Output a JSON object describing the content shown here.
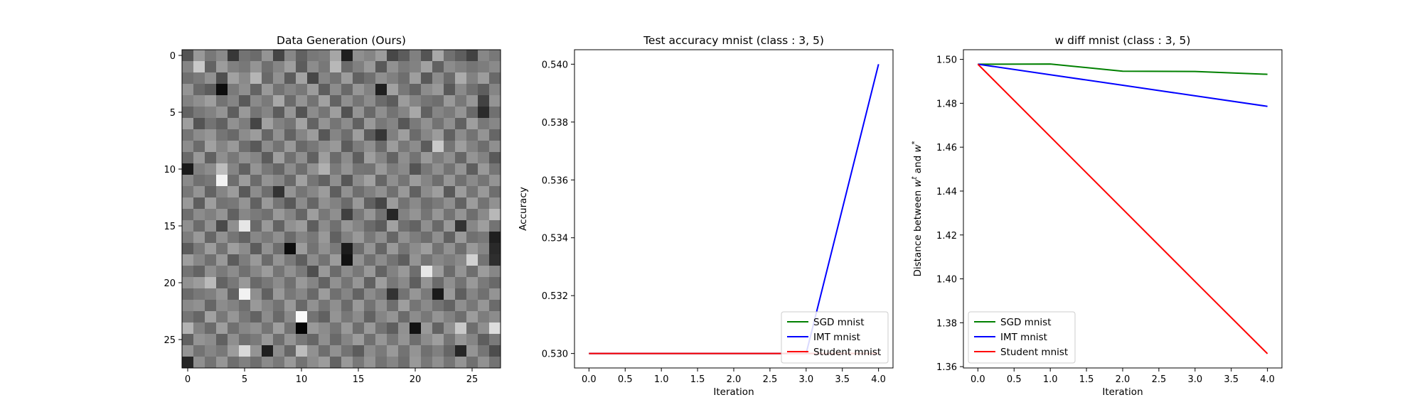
{
  "chart_data": [
    {
      "type": "heatmap",
      "title": "Data Generation (Ours)",
      "rows": 28,
      "cols": 28,
      "colormap": "gray",
      "xticks": [
        "0",
        "5",
        "10",
        "15",
        "20",
        "25"
      ],
      "yticks": [
        "0",
        "5",
        "10",
        "15",
        "20",
        "25"
      ],
      "pixels": [
        [
          0.33,
          0.6,
          0.47,
          0.54,
          0.22,
          0.45,
          0.42,
          0.58,
          0.27,
          0.53,
          0.38,
          0.47,
          0.49,
          0.65,
          0.12,
          0.56,
          0.52,
          0.61,
          0.28,
          0.36,
          0.5,
          0.33,
          0.66,
          0.44,
          0.37,
          0.26,
          0.53,
          0.47
        ],
        [
          0.52,
          0.79,
          0.39,
          0.61,
          0.5,
          0.47,
          0.58,
          0.44,
          0.52,
          0.62,
          0.36,
          0.55,
          0.47,
          0.72,
          0.42,
          0.5,
          0.6,
          0.35,
          0.57,
          0.48,
          0.51,
          0.63,
          0.38,
          0.55,
          0.5,
          0.46,
          0.49,
          0.54
        ],
        [
          0.44,
          0.48,
          0.57,
          0.31,
          0.63,
          0.54,
          0.71,
          0.41,
          0.57,
          0.36,
          0.64,
          0.28,
          0.52,
          0.45,
          0.61,
          0.38,
          0.44,
          0.56,
          0.5,
          0.43,
          0.62,
          0.35,
          0.55,
          0.42,
          0.67,
          0.51,
          0.61,
          0.41
        ],
        [
          0.58,
          0.41,
          0.36,
          0.05,
          0.48,
          0.56,
          0.39,
          0.6,
          0.45,
          0.52,
          0.47,
          0.61,
          0.37,
          0.55,
          0.41,
          0.59,
          0.51,
          0.12,
          0.63,
          0.47,
          0.39,
          0.55,
          0.6,
          0.35,
          0.54,
          0.44,
          0.37,
          0.52
        ],
        [
          0.51,
          0.56,
          0.62,
          0.45,
          0.52,
          0.35,
          0.54,
          0.48,
          0.66,
          0.42,
          0.58,
          0.45,
          0.63,
          0.39,
          0.56,
          0.46,
          0.55,
          0.42,
          0.36,
          0.61,
          0.52,
          0.46,
          0.43,
          0.6,
          0.47,
          0.59,
          0.26,
          0.58
        ],
        [
          0.39,
          0.47,
          0.51,
          0.58,
          0.37,
          0.6,
          0.46,
          0.52,
          0.36,
          0.59,
          0.33,
          0.55,
          0.46,
          0.62,
          0.32,
          0.58,
          0.41,
          0.56,
          0.45,
          0.52,
          0.66,
          0.38,
          0.52,
          0.48,
          0.58,
          0.41,
          0.17,
          0.44
        ],
        [
          0.62,
          0.33,
          0.45,
          0.38,
          0.57,
          0.49,
          0.27,
          0.63,
          0.51,
          0.46,
          0.64,
          0.39,
          0.58,
          0.46,
          0.55,
          0.38,
          0.6,
          0.47,
          0.52,
          0.34,
          0.48,
          0.57,
          0.45,
          0.56,
          0.38,
          0.62,
          0.47,
          0.53
        ],
        [
          0.46,
          0.55,
          0.59,
          0.46,
          0.41,
          0.55,
          0.61,
          0.4,
          0.57,
          0.39,
          0.52,
          0.61,
          0.34,
          0.52,
          0.43,
          0.62,
          0.36,
          0.21,
          0.5,
          0.62,
          0.42,
          0.53,
          0.61,
          0.38,
          0.55,
          0.45,
          0.58,
          0.4
        ],
        [
          0.55,
          0.42,
          0.63,
          0.52,
          0.6,
          0.43,
          0.35,
          0.55,
          0.45,
          0.6,
          0.41,
          0.47,
          0.55,
          0.6,
          0.36,
          0.49,
          0.56,
          0.42,
          0.61,
          0.47,
          0.55,
          0.36,
          0.79,
          0.46,
          0.62,
          0.51,
          0.43,
          0.56
        ],
        [
          0.41,
          0.6,
          0.38,
          0.56,
          0.47,
          0.57,
          0.52,
          0.36,
          0.62,
          0.44,
          0.56,
          0.38,
          0.62,
          0.42,
          0.55,
          0.37,
          0.62,
          0.52,
          0.39,
          0.56,
          0.45,
          0.6,
          0.49,
          0.56,
          0.4,
          0.58,
          0.51,
          0.35
        ],
        [
          0.1,
          0.5,
          0.55,
          0.74,
          0.52,
          0.38,
          0.58,
          0.47,
          0.4,
          0.55,
          0.43,
          0.57,
          0.69,
          0.48,
          0.58,
          0.46,
          0.45,
          0.6,
          0.49,
          0.54,
          0.33,
          0.47,
          0.56,
          0.45,
          0.58,
          0.37,
          0.6,
          0.46
        ],
        [
          0.54,
          0.44,
          0.47,
          0.95,
          0.43,
          0.61,
          0.42,
          0.58,
          0.53,
          0.41,
          0.63,
          0.46,
          0.38,
          0.56,
          0.34,
          0.55,
          0.63,
          0.4,
          0.56,
          0.46,
          0.61,
          0.52,
          0.43,
          0.59,
          0.44,
          0.54,
          0.46,
          0.58
        ],
        [
          0.47,
          0.58,
          0.39,
          0.52,
          0.61,
          0.35,
          0.55,
          0.43,
          0.2,
          0.58,
          0.46,
          0.53,
          0.61,
          0.37,
          0.57,
          0.43,
          0.5,
          0.57,
          0.44,
          0.6,
          0.38,
          0.55,
          0.62,
          0.35,
          0.61,
          0.46,
          0.6,
          0.43
        ],
        [
          0.6,
          0.37,
          0.62,
          0.45,
          0.47,
          0.58,
          0.38,
          0.6,
          0.46,
          0.35,
          0.55,
          0.4,
          0.57,
          0.51,
          0.42,
          0.6,
          0.38,
          0.28,
          0.61,
          0.45,
          0.54,
          0.43,
          0.48,
          0.56,
          0.39,
          0.61,
          0.45,
          0.57
        ],
        [
          0.43,
          0.55,
          0.5,
          0.58,
          0.38,
          0.53,
          0.48,
          0.44,
          0.6,
          0.52,
          0.4,
          0.62,
          0.47,
          0.56,
          0.25,
          0.47,
          0.59,
          0.45,
          0.15,
          0.51,
          0.58,
          0.46,
          0.59,
          0.45,
          0.58,
          0.43,
          0.54,
          0.72
        ],
        [
          0.56,
          0.42,
          0.57,
          0.29,
          0.56,
          0.9,
          0.41,
          0.6,
          0.39,
          0.57,
          0.61,
          0.37,
          0.55,
          0.44,
          0.59,
          0.52,
          0.42,
          0.36,
          0.63,
          0.44,
          0.39,
          0.56,
          0.41,
          0.6,
          0.2,
          0.53,
          0.62,
          0.45
        ],
        [
          0.49,
          0.6,
          0.4,
          0.57,
          0.46,
          0.39,
          0.53,
          0.48,
          0.56,
          0.42,
          0.52,
          0.47,
          0.6,
          0.38,
          0.51,
          0.6,
          0.47,
          0.56,
          0.4,
          0.57,
          0.49,
          0.43,
          0.56,
          0.38,
          0.6,
          0.44,
          0.47,
          0.12
        ],
        [
          0.36,
          0.48,
          0.61,
          0.45,
          0.62,
          0.55,
          0.36,
          0.57,
          0.43,
          0.05,
          0.61,
          0.45,
          0.57,
          0.48,
          0.11,
          0.43,
          0.58,
          0.4,
          0.6,
          0.46,
          0.55,
          0.62,
          0.45,
          0.57,
          0.43,
          0.6,
          0.52,
          0.16
        ],
        [
          0.62,
          0.53,
          0.44,
          0.6,
          0.36,
          0.49,
          0.6,
          0.42,
          0.58,
          0.48,
          0.37,
          0.55,
          0.45,
          0.61,
          0.07,
          0.57,
          0.44,
          0.55,
          0.45,
          0.37,
          0.58,
          0.46,
          0.53,
          0.49,
          0.54,
          0.82,
          0.45,
          0.18
        ],
        [
          0.45,
          0.39,
          0.56,
          0.48,
          0.55,
          0.44,
          0.53,
          0.61,
          0.46,
          0.57,
          0.48,
          0.31,
          0.6,
          0.42,
          0.55,
          0.47,
          0.6,
          0.39,
          0.51,
          0.6,
          0.43,
          0.91,
          0.61,
          0.42,
          0.58,
          0.43,
          0.61,
          0.53
        ],
        [
          0.57,
          0.61,
          0.73,
          0.39,
          0.47,
          0.6,
          0.41,
          0.47,
          0.55,
          0.44,
          0.6,
          0.52,
          0.39,
          0.57,
          0.46,
          0.59,
          0.38,
          0.62,
          0.47,
          0.54,
          0.37,
          0.58,
          0.42,
          0.56,
          0.45,
          0.6,
          0.48,
          0.41
        ],
        [
          0.42,
          0.47,
          0.5,
          0.59,
          0.38,
          0.95,
          0.56,
          0.38,
          0.6,
          0.47,
          0.53,
          0.41,
          0.61,
          0.44,
          0.52,
          0.39,
          0.55,
          0.48,
          0.2,
          0.45,
          0.59,
          0.48,
          0.1,
          0.6,
          0.37,
          0.52,
          0.44,
          0.58
        ],
        [
          0.54,
          0.57,
          0.4,
          0.55,
          0.51,
          0.43,
          0.6,
          0.52,
          0.45,
          0.6,
          0.41,
          0.57,
          0.46,
          0.56,
          0.42,
          0.6,
          0.45,
          0.57,
          0.43,
          0.62,
          0.46,
          0.54,
          0.45,
          0.39,
          0.56,
          0.47,
          0.59,
          0.42
        ],
        [
          0.46,
          0.4,
          0.63,
          0.47,
          0.59,
          0.47,
          0.39,
          0.55,
          0.41,
          0.54,
          0.98,
          0.45,
          0.38,
          0.58,
          0.47,
          0.55,
          0.39,
          0.52,
          0.58,
          0.42,
          0.55,
          0.47,
          0.58,
          0.51,
          0.43,
          0.61,
          0.49,
          0.55
        ],
        [
          0.7,
          0.51,
          0.42,
          0.62,
          0.44,
          0.53,
          0.57,
          0.46,
          0.62,
          0.45,
          0.02,
          0.6,
          0.55,
          0.46,
          0.6,
          0.43,
          0.6,
          0.45,
          0.37,
          0.57,
          0.07,
          0.6,
          0.39,
          0.57,
          0.79,
          0.43,
          0.56,
          0.87
        ],
        [
          0.38,
          0.58,
          0.55,
          0.38,
          0.56,
          0.44,
          0.48,
          0.6,
          0.43,
          0.58,
          0.47,
          0.4,
          0.56,
          0.41,
          0.52,
          0.61,
          0.44,
          0.59,
          0.47,
          0.58,
          0.43,
          0.55,
          0.62,
          0.46,
          0.59,
          0.52,
          0.37,
          0.48
        ],
        [
          0.58,
          0.45,
          0.52,
          0.47,
          0.61,
          0.85,
          0.58,
          0.12,
          0.55,
          0.4,
          0.74,
          0.57,
          0.43,
          0.57,
          0.45,
          0.36,
          0.55,
          0.48,
          0.6,
          0.45,
          0.58,
          0.44,
          0.5,
          0.4,
          0.15,
          0.58,
          0.46,
          0.3
        ],
        [
          0.15,
          0.56,
          0.45,
          0.59,
          0.43,
          0.5,
          0.43,
          0.54,
          0.47,
          0.6,
          0.45,
          0.55,
          0.61,
          0.39,
          0.6,
          0.47,
          0.58,
          0.45,
          0.52,
          0.43,
          0.6,
          0.47,
          0.56,
          0.46,
          0.58,
          0.44,
          0.57,
          0.45
        ]
      ]
    },
    {
      "type": "line",
      "title": "Test accuracy mnist (class : 3, 5)",
      "xlabel": "Iteration",
      "ylabel": "Accuracy",
      "xlim": [
        -0.2,
        4.2
      ],
      "ylim": [
        0.5295,
        0.5405
      ],
      "xticks": [
        0.0,
        0.5,
        1.0,
        1.5,
        2.0,
        2.5,
        3.0,
        3.5,
        4.0
      ],
      "xtick_labels": [
        "0.0",
        "0.5",
        "1.0",
        "1.5",
        "2.0",
        "2.5",
        "3.0",
        "3.5",
        "4.0"
      ],
      "yticks": [
        0.53,
        0.532,
        0.534,
        0.536,
        0.538,
        0.54
      ],
      "ytick_labels": [
        "0.530",
        "0.532",
        "0.534",
        "0.536",
        "0.538",
        "0.540"
      ],
      "x": [
        0,
        1,
        2,
        3,
        4
      ],
      "series": [
        {
          "name": "SGD mnist",
          "color": "#008000",
          "values": [
            0.53,
            0.53,
            0.53,
            0.53,
            0.53
          ]
        },
        {
          "name": "IMT mnist",
          "color": "#0000ff",
          "values": [
            0.53,
            0.53,
            0.53,
            0.53,
            0.54
          ]
        },
        {
          "name": "Student mnist",
          "color": "#ff0000",
          "values": [
            0.53,
            0.53,
            0.53,
            0.53,
            0.53
          ]
        }
      ],
      "legend": "lower-right"
    },
    {
      "type": "line",
      "title": "w diff mnist (class : 3, 5)",
      "xlabel": "Iteration",
      "ylabel": "Distance between w^t and w^*",
      "xlim": [
        -0.2,
        4.2
      ],
      "ylim": [
        1.3594,
        1.5044
      ],
      "xticks": [
        0.0,
        0.5,
        1.0,
        1.5,
        2.0,
        2.5,
        3.0,
        3.5,
        4.0
      ],
      "xtick_labels": [
        "0.0",
        "0.5",
        "1.0",
        "1.5",
        "2.0",
        "2.5",
        "3.0",
        "3.5",
        "4.0"
      ],
      "yticks": [
        1.36,
        1.38,
        1.4,
        1.42,
        1.44,
        1.46,
        1.48,
        1.5
      ],
      "ytick_labels": [
        "1.36",
        "1.38",
        "1.40",
        "1.42",
        "1.44",
        "1.46",
        "1.48",
        "1.50"
      ],
      "x": [
        0,
        1,
        2,
        3,
        4
      ],
      "series": [
        {
          "name": "SGD mnist",
          "color": "#008000",
          "values": [
            1.4978,
            1.4979,
            1.4946,
            1.4945,
            1.4932
          ]
        },
        {
          "name": "IMT mnist",
          "color": "#0000ff",
          "values": [
            1.4978,
            1.493,
            1.4882,
            1.4834,
            1.4786
          ]
        },
        {
          "name": "Student mnist",
          "color": "#ff0000",
          "values": [
            1.4978,
            1.4648,
            1.4318,
            1.3988,
            1.3659
          ]
        }
      ],
      "legend": "lower-left"
    }
  ]
}
